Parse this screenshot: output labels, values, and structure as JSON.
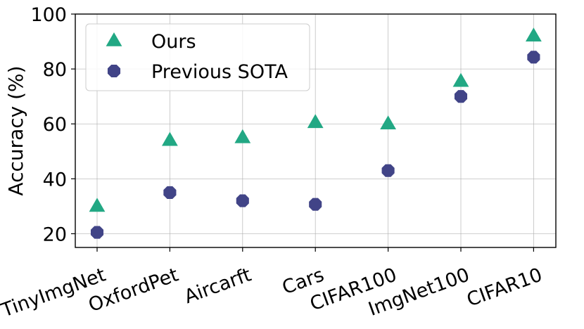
{
  "chart_data": {
    "type": "scatter",
    "categories": [
      "TinyImgNet",
      "OxfordPet",
      "Aircarft",
      "Cars",
      "CIFAR100",
      "ImgNet100",
      "CIFAR10"
    ],
    "series": [
      {
        "name": "Ours",
        "marker": "triangle",
        "color": "#22a884",
        "values": [
          30,
          54,
          55,
          60.5,
          60,
          75.5,
          92
        ]
      },
      {
        "name": "Previous SOTA",
        "marker": "octagon",
        "color": "#414487",
        "values": [
          20.5,
          35,
          32,
          30.7,
          43,
          70,
          84.3
        ]
      }
    ],
    "ylabel": "Accuracy (%)",
    "xlabel": "",
    "ylim": [
      15,
      100
    ],
    "yticks": [
      20,
      40,
      60,
      80,
      100
    ],
    "grid": true,
    "legend_position": "upper-left"
  }
}
